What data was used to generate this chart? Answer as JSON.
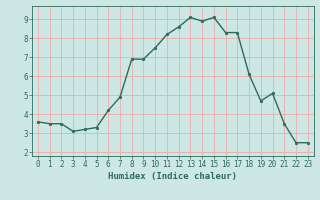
{
  "x": [
    0,
    1,
    2,
    3,
    4,
    5,
    6,
    7,
    8,
    9,
    10,
    11,
    12,
    13,
    14,
    15,
    16,
    17,
    18,
    19,
    20,
    21,
    22,
    23
  ],
  "y": [
    3.6,
    3.5,
    3.5,
    3.1,
    3.2,
    3.3,
    4.2,
    4.9,
    6.9,
    6.9,
    7.5,
    8.2,
    8.6,
    9.1,
    8.9,
    9.1,
    8.3,
    8.3,
    6.1,
    4.7,
    5.1,
    3.5,
    2.5,
    2.5
  ],
  "line_color": "#2d6b5e",
  "marker": "o",
  "marker_size": 1.8,
  "bg_color": "#cde8e4",
  "grid_color": "#f0aaaa",
  "axis_bg": "#cde8e4",
  "xlabel": "Humidex (Indice chaleur)",
  "xlim": [
    -0.5,
    23.5
  ],
  "ylim": [
    1.8,
    9.7
  ],
  "yticks": [
    2,
    3,
    4,
    5,
    6,
    7,
    8,
    9
  ],
  "xticks": [
    0,
    1,
    2,
    3,
    4,
    5,
    6,
    7,
    8,
    9,
    10,
    11,
    12,
    13,
    14,
    15,
    16,
    17,
    18,
    19,
    20,
    21,
    22,
    23
  ],
  "tick_color": "#2d6b5e",
  "label_fontsize": 6.5,
  "tick_fontsize": 5.5,
  "linewidth": 1.0
}
